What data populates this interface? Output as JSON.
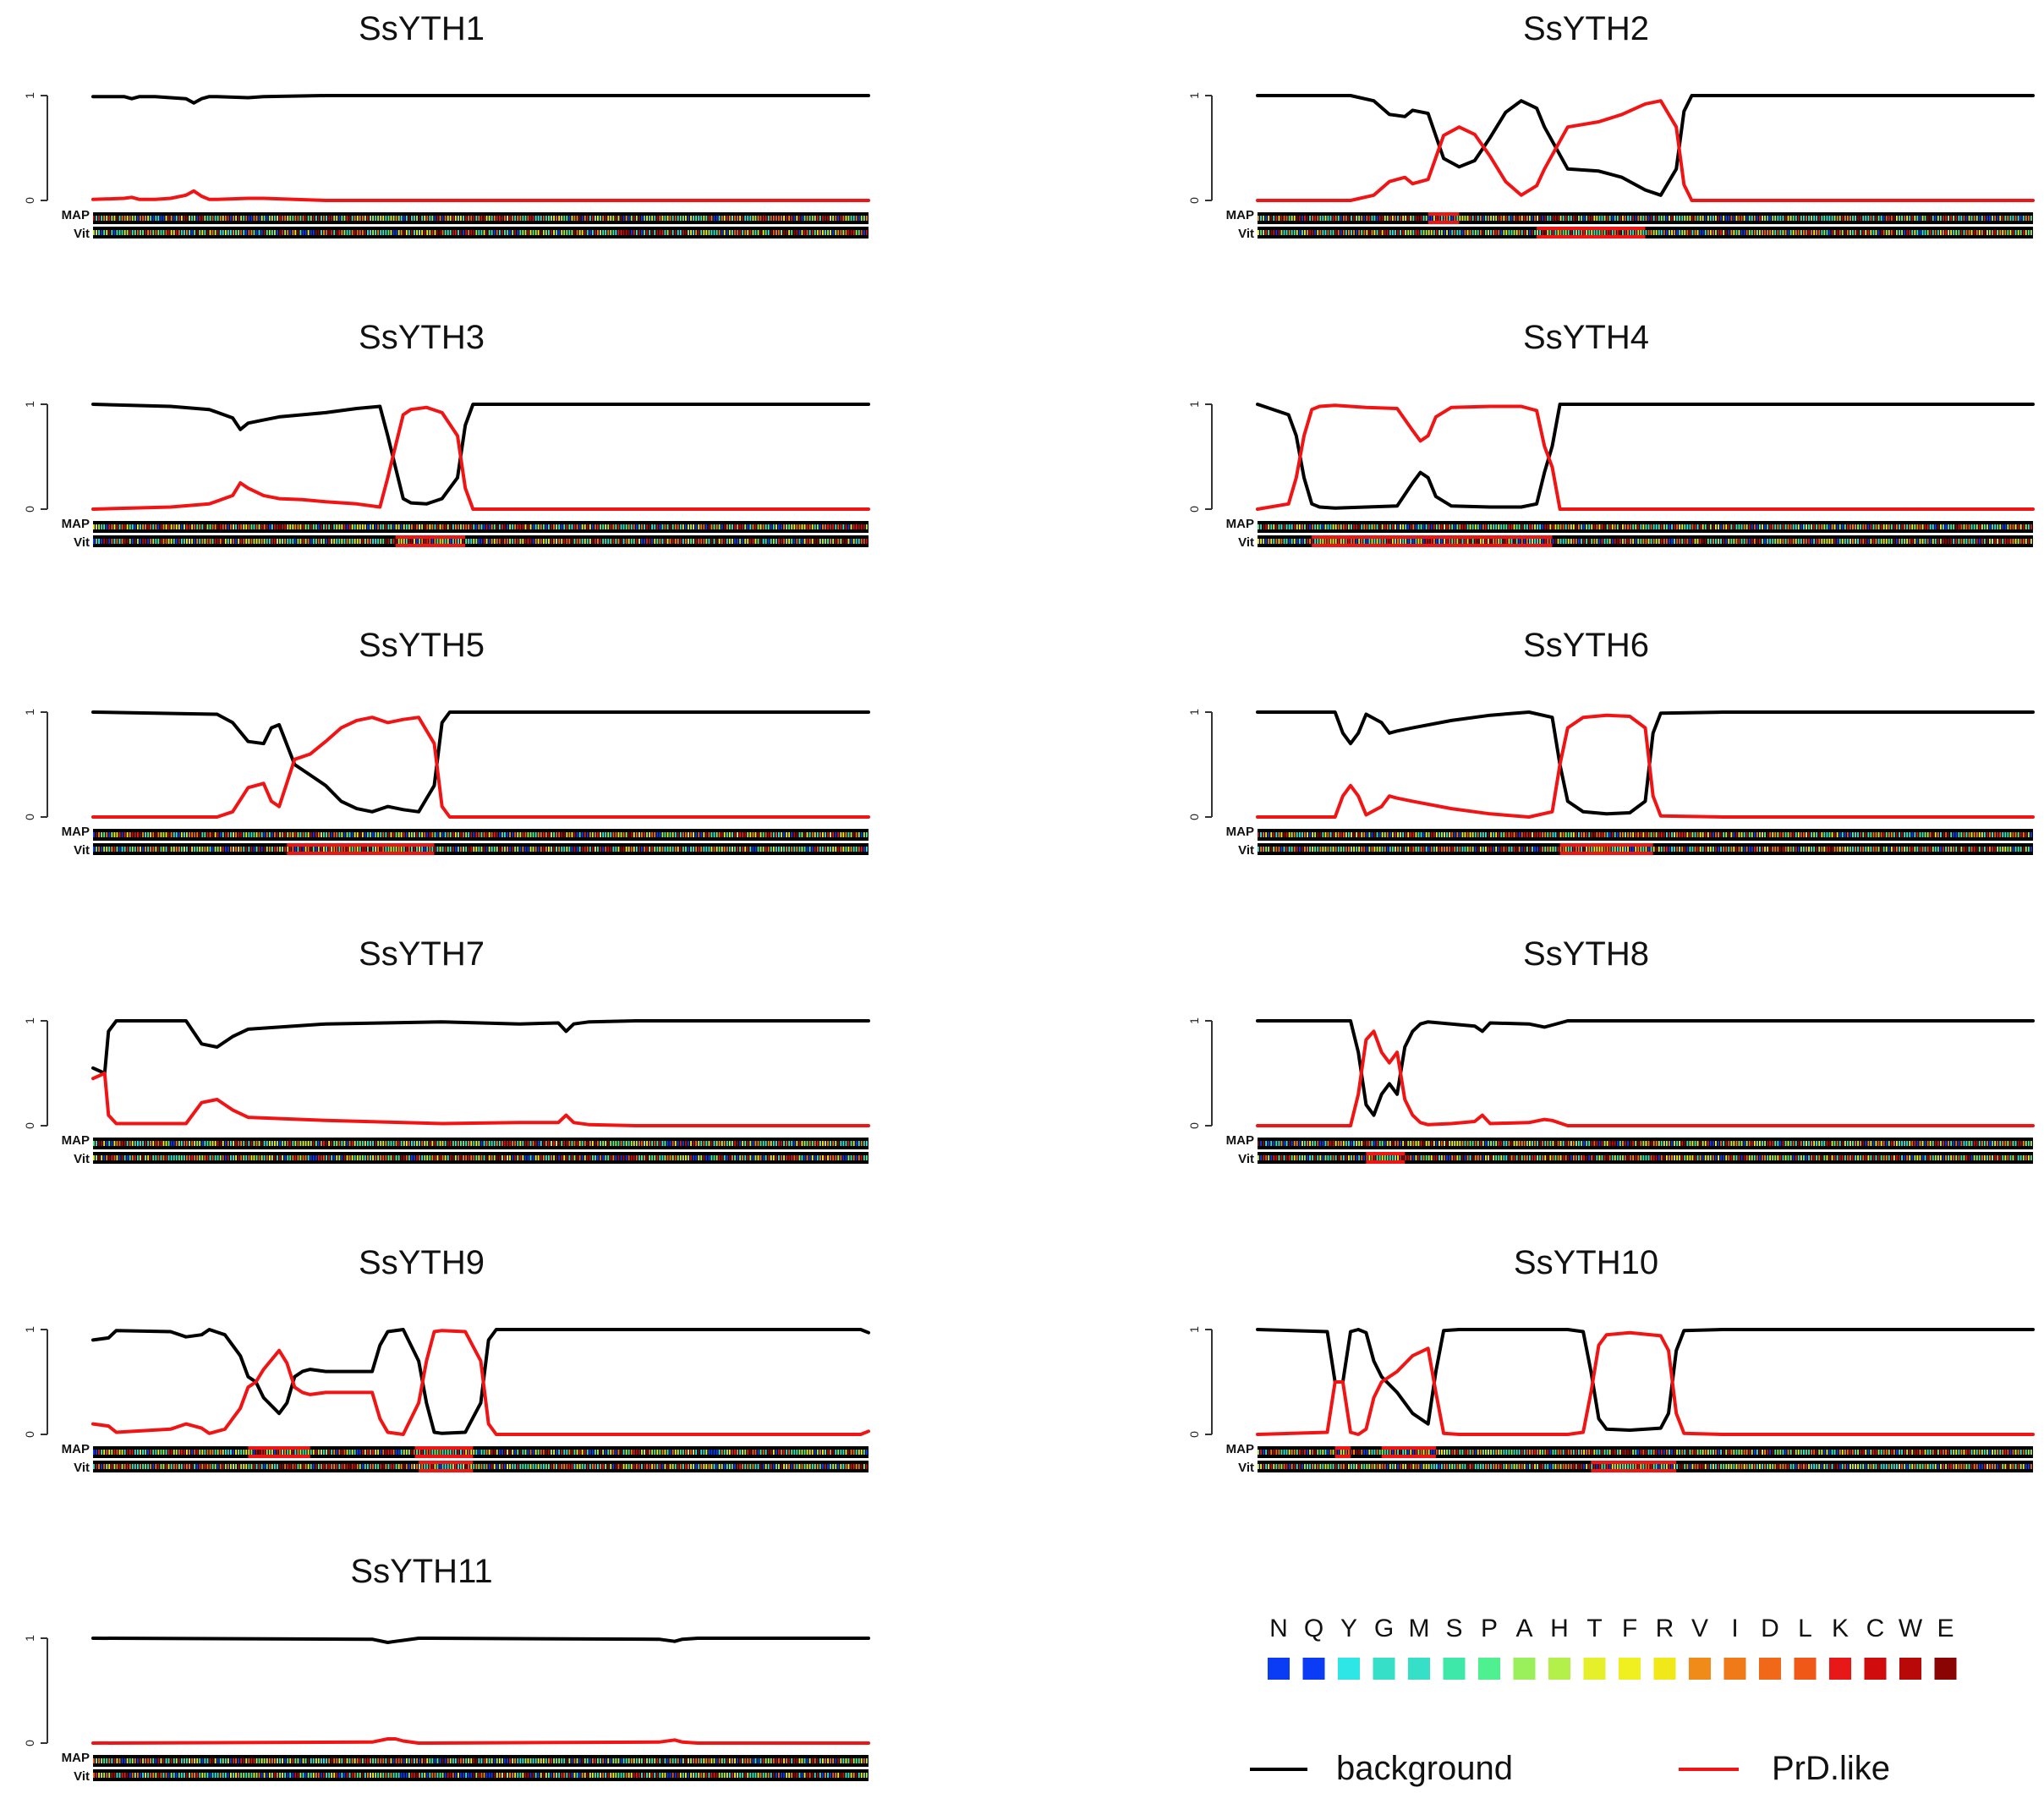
{
  "figure": {
    "legend": {
      "amino_acids": [
        "N",
        "Q",
        "Y",
        "G",
        "M",
        "S",
        "P",
        "A",
        "H",
        "T",
        "F",
        "R",
        "V",
        "I",
        "D",
        "L",
        "K",
        "C",
        "W",
        "E"
      ],
      "amino_colors": [
        "#0a3cf5",
        "#0a3cf5",
        "#2ee6e6",
        "#36e0c8",
        "#36e0c8",
        "#3ee8a8",
        "#4ef090",
        "#9af05a",
        "#b4f04a",
        "#e6f02a",
        "#f0f020",
        "#f0e818",
        "#f08a18",
        "#f07a18",
        "#f06818",
        "#f05818",
        "#e81818",
        "#d00c0c",
        "#b80808",
        "#8a0404"
      ],
      "lines": [
        {
          "label": "background",
          "color": "#000000"
        },
        {
          "label": "PrD.like",
          "color": "#f01414"
        }
      ]
    }
  },
  "chart_data": [
    {
      "type": "line",
      "title": "SsYTH1",
      "y_ticks": [
        "1",
        "0"
      ],
      "track_labels": [
        "MAP",
        "Vit"
      ],
      "ylim": [
        0,
        1
      ],
      "x": [
        0,
        0.04,
        0.05,
        0.06,
        0.08,
        0.1,
        0.12,
        0.13,
        0.14,
        0.15,
        0.16,
        0.2,
        0.22,
        0.3,
        1
      ],
      "series": [
        {
          "name": "background",
          "values": [
            0.99,
            0.99,
            0.97,
            0.99,
            0.99,
            0.98,
            0.97,
            0.93,
            0.97,
            0.99,
            0.99,
            0.98,
            0.99,
            1,
            1
          ]
        },
        {
          "name": "PrD.like",
          "values": [
            0.01,
            0.02,
            0.03,
            0.01,
            0.01,
            0.02,
            0.05,
            0.09,
            0.04,
            0.01,
            0.01,
            0.02,
            0.02,
            0,
            0
          ]
        }
      ],
      "map_segments": [],
      "vit_segments": []
    },
    {
      "type": "line",
      "title": "SsYTH2",
      "y_ticks": [
        "1",
        "0"
      ],
      "track_labels": [
        "MAP",
        "Vit"
      ],
      "ylim": [
        0,
        1
      ],
      "x": [
        0,
        0.12,
        0.15,
        0.17,
        0.19,
        0.2,
        0.22,
        0.24,
        0.26,
        0.28,
        0.3,
        0.32,
        0.34,
        0.36,
        0.37,
        0.4,
        0.44,
        0.47,
        0.5,
        0.52,
        0.54,
        0.55,
        0.56,
        0.58,
        0.62,
        0.75,
        1
      ],
      "series": [
        {
          "name": "background",
          "values": [
            1,
            1,
            0.95,
            0.82,
            0.8,
            0.86,
            0.83,
            0.4,
            0.32,
            0.38,
            0.6,
            0.84,
            0.95,
            0.88,
            0.7,
            0.3,
            0.28,
            0.22,
            0.1,
            0.05,
            0.3,
            0.85,
            1,
            1,
            1,
            1,
            1
          ]
        },
        {
          "name": "PrD.like",
          "values": [
            0,
            0,
            0.05,
            0.18,
            0.22,
            0.16,
            0.2,
            0.62,
            0.7,
            0.63,
            0.42,
            0.18,
            0.05,
            0.14,
            0.3,
            0.7,
            0.75,
            0.82,
            0.92,
            0.95,
            0.7,
            0.15,
            0,
            0,
            0,
            0,
            0
          ]
        }
      ],
      "map_segments": [
        [
          0.22,
          0.26
        ]
      ],
      "vit_segments": [
        [
          0.36,
          0.5
        ]
      ]
    },
    {
      "type": "line",
      "title": "SsYTH3",
      "y_ticks": [
        "1",
        "0"
      ],
      "track_labels": [
        "MAP",
        "Vit"
      ],
      "ylim": [
        0,
        1
      ],
      "x": [
        0,
        0.1,
        0.15,
        0.18,
        0.19,
        0.2,
        0.22,
        0.24,
        0.27,
        0.3,
        0.34,
        0.37,
        0.38,
        0.39,
        0.4,
        0.41,
        0.43,
        0.45,
        0.47,
        0.48,
        0.49,
        0.5,
        0.6,
        1
      ],
      "series": [
        {
          "name": "background",
          "values": [
            1,
            0.98,
            0.95,
            0.87,
            0.76,
            0.82,
            0.85,
            0.88,
            0.9,
            0.92,
            0.96,
            0.98,
            0.7,
            0.4,
            0.1,
            0.06,
            0.05,
            0.1,
            0.3,
            0.8,
            1,
            1,
            1,
            1
          ]
        },
        {
          "name": "PrD.like",
          "values": [
            0,
            0.02,
            0.05,
            0.13,
            0.25,
            0.2,
            0.13,
            0.1,
            0.09,
            0.07,
            0.05,
            0.02,
            0.3,
            0.6,
            0.9,
            0.95,
            0.97,
            0.92,
            0.7,
            0.2,
            0,
            0,
            0,
            0
          ]
        }
      ],
      "map_segments": [],
      "vit_segments": [
        [
          0.39,
          0.48
        ]
      ]
    },
    {
      "type": "line",
      "title": "SsYTH4",
      "y_ticks": [
        "1",
        "0"
      ],
      "track_labels": [
        "MAP",
        "Vit"
      ],
      "ylim": [
        0,
        1
      ],
      "x": [
        0,
        0.04,
        0.05,
        0.06,
        0.07,
        0.08,
        0.1,
        0.14,
        0.18,
        0.2,
        0.21,
        0.22,
        0.23,
        0.25,
        0.3,
        0.34,
        0.36,
        0.37,
        0.38,
        0.39,
        0.4,
        0.5,
        1
      ],
      "series": [
        {
          "name": "background",
          "values": [
            1,
            0.9,
            0.7,
            0.3,
            0.05,
            0.02,
            0.01,
            0.02,
            0.03,
            0.25,
            0.35,
            0.3,
            0.12,
            0.03,
            0.02,
            0.02,
            0.05,
            0.35,
            0.6,
            1,
            1,
            1,
            1
          ]
        },
        {
          "name": "PrD.like",
          "values": [
            0,
            0.05,
            0.3,
            0.7,
            0.95,
            0.98,
            0.99,
            0.97,
            0.96,
            0.75,
            0.65,
            0.7,
            0.88,
            0.97,
            0.98,
            0.98,
            0.94,
            0.6,
            0.4,
            0,
            0,
            0,
            0
          ]
        }
      ],
      "map_segments": [],
      "vit_segments": [
        [
          0.07,
          0.38
        ]
      ]
    },
    {
      "type": "line",
      "title": "SsYTH5",
      "y_ticks": [
        "1",
        "0"
      ],
      "track_labels": [
        "MAP",
        "Vit"
      ],
      "ylim": [
        0,
        1
      ],
      "x": [
        0,
        0.16,
        0.18,
        0.2,
        0.22,
        0.23,
        0.24,
        0.26,
        0.28,
        0.3,
        0.32,
        0.34,
        0.36,
        0.38,
        0.4,
        0.42,
        0.44,
        0.45,
        0.46,
        0.5,
        1
      ],
      "series": [
        {
          "name": "background",
          "values": [
            1,
            0.98,
            0.9,
            0.72,
            0.7,
            0.85,
            0.88,
            0.5,
            0.4,
            0.3,
            0.15,
            0.08,
            0.05,
            0.1,
            0.07,
            0.05,
            0.3,
            0.9,
            1,
            1,
            1
          ]
        },
        {
          "name": "PrD.like",
          "values": [
            0,
            0,
            0.05,
            0.28,
            0.32,
            0.15,
            0.1,
            0.55,
            0.6,
            0.72,
            0.85,
            0.92,
            0.95,
            0.9,
            0.93,
            0.95,
            0.7,
            0.1,
            0,
            0,
            0
          ]
        }
      ],
      "map_segments": [],
      "vit_segments": [
        [
          0.25,
          0.44
        ]
      ]
    },
    {
      "type": "line",
      "title": "SsYTH6",
      "y_ticks": [
        "1",
        "0"
      ],
      "track_labels": [
        "MAP",
        "Vit"
      ],
      "ylim": [
        0,
        1
      ],
      "x": [
        0,
        0.1,
        0.11,
        0.12,
        0.13,
        0.14,
        0.16,
        0.17,
        0.18,
        0.2,
        0.25,
        0.3,
        0.35,
        0.38,
        0.39,
        0.4,
        0.42,
        0.45,
        0.48,
        0.5,
        0.51,
        0.52,
        0.6,
        1
      ],
      "series": [
        {
          "name": "background",
          "values": [
            1,
            1,
            0.8,
            0.7,
            0.8,
            0.98,
            0.9,
            0.8,
            0.82,
            0.85,
            0.92,
            0.97,
            1,
            0.95,
            0.5,
            0.15,
            0.05,
            0.03,
            0.04,
            0.15,
            0.8,
            0.99,
            1,
            1
          ]
        },
        {
          "name": "PrD.like",
          "values": [
            0,
            0,
            0.2,
            0.3,
            0.2,
            0.02,
            0.1,
            0.2,
            0.18,
            0.15,
            0.08,
            0.03,
            0,
            0.05,
            0.5,
            0.85,
            0.95,
            0.97,
            0.96,
            0.85,
            0.2,
            0.01,
            0,
            0
          ]
        }
      ],
      "map_segments": [],
      "vit_segments": [
        [
          0.39,
          0.51
        ]
      ]
    },
    {
      "type": "line",
      "title": "SsYTH7",
      "y_ticks": [
        "1",
        "0"
      ],
      "track_labels": [
        "MAP",
        "Vit"
      ],
      "ylim": [
        0,
        1
      ],
      "x": [
        0,
        0.015,
        0.02,
        0.03,
        0.12,
        0.14,
        0.16,
        0.18,
        0.2,
        0.3,
        0.45,
        0.55,
        0.6,
        0.61,
        0.62,
        0.64,
        0.7,
        1
      ],
      "series": [
        {
          "name": "background",
          "values": [
            0.55,
            0.5,
            0.9,
            1,
            1,
            0.78,
            0.75,
            0.85,
            0.92,
            0.97,
            0.99,
            0.97,
            0.98,
            0.9,
            0.97,
            0.99,
            1,
            1
          ]
        },
        {
          "name": "PrD.like",
          "values": [
            0.45,
            0.5,
            0.1,
            0.02,
            0.02,
            0.22,
            0.25,
            0.15,
            0.08,
            0.05,
            0.02,
            0.03,
            0.03,
            0.1,
            0.03,
            0.01,
            0,
            0
          ]
        }
      ],
      "map_segments": [],
      "vit_segments": []
    },
    {
      "type": "line",
      "title": "SsYTH8",
      "y_ticks": [
        "1",
        "0"
      ],
      "track_labels": [
        "MAP",
        "Vit"
      ],
      "ylim": [
        0,
        1
      ],
      "x": [
        0,
        0.12,
        0.13,
        0.14,
        0.15,
        0.16,
        0.17,
        0.18,
        0.19,
        0.2,
        0.21,
        0.22,
        0.25,
        0.28,
        0.29,
        0.3,
        0.35,
        0.37,
        0.38,
        0.4,
        0.5,
        1
      ],
      "series": [
        {
          "name": "background",
          "values": [
            1,
            1,
            0.7,
            0.2,
            0.1,
            0.3,
            0.4,
            0.3,
            0.75,
            0.9,
            0.97,
            0.99,
            0.97,
            0.95,
            0.9,
            0.98,
            0.97,
            0.94,
            0.96,
            1,
            1,
            1
          ]
        },
        {
          "name": "PrD.like",
          "values": [
            0,
            0,
            0.3,
            0.82,
            0.9,
            0.7,
            0.6,
            0.7,
            0.25,
            0.1,
            0.03,
            0.01,
            0.02,
            0.04,
            0.1,
            0.02,
            0.03,
            0.06,
            0.05,
            0,
            0,
            0
          ]
        }
      ],
      "map_segments": [],
      "vit_segments": [
        [
          0.14,
          0.19
        ]
      ]
    },
    {
      "type": "line",
      "title": "SsYTH9",
      "y_ticks": [
        "1",
        "0"
      ],
      "track_labels": [
        "MAP",
        "Vit"
      ],
      "ylim": [
        0,
        1
      ],
      "x": [
        0,
        0.02,
        0.03,
        0.1,
        0.12,
        0.14,
        0.15,
        0.17,
        0.19,
        0.2,
        0.21,
        0.22,
        0.24,
        0.25,
        0.26,
        0.27,
        0.28,
        0.3,
        0.36,
        0.37,
        0.38,
        0.4,
        0.42,
        0.43,
        0.44,
        0.45,
        0.48,
        0.5,
        0.51,
        0.52,
        0.6,
        0.99,
        1
      ],
      "series": [
        {
          "name": "background",
          "values": [
            0.9,
            0.92,
            0.99,
            0.98,
            0.93,
            0.95,
            1,
            0.95,
            0.75,
            0.55,
            0.5,
            0.35,
            0.2,
            0.3,
            0.55,
            0.6,
            0.62,
            0.6,
            0.6,
            0.85,
            0.98,
            1,
            0.7,
            0.3,
            0.02,
            0.01,
            0.02,
            0.3,
            0.9,
            1,
            1,
            1,
            0.97
          ]
        },
        {
          "name": "PrD.like",
          "values": [
            0.1,
            0.08,
            0.02,
            0.05,
            0.1,
            0.06,
            0.01,
            0.05,
            0.25,
            0.45,
            0.5,
            0.62,
            0.8,
            0.68,
            0.45,
            0.4,
            0.38,
            0.4,
            0.4,
            0.15,
            0.02,
            0,
            0.3,
            0.7,
            0.98,
            0.99,
            0.98,
            0.7,
            0.1,
            0,
            0,
            0,
            0.03
          ]
        }
      ],
      "map_segments": [
        [
          0.2,
          0.28
        ],
        [
          0.415,
          0.49
        ]
      ],
      "vit_segments": [
        [
          0.42,
          0.49
        ]
      ]
    },
    {
      "type": "line",
      "title": "SsYTH10",
      "y_ticks": [
        "1",
        "0"
      ],
      "track_labels": [
        "MAP",
        "Vit"
      ],
      "ylim": [
        0,
        1
      ],
      "x": [
        0,
        0.09,
        0.1,
        0.11,
        0.12,
        0.13,
        0.14,
        0.15,
        0.16,
        0.18,
        0.2,
        0.22,
        0.23,
        0.24,
        0.26,
        0.3,
        0.4,
        0.42,
        0.43,
        0.44,
        0.45,
        0.48,
        0.52,
        0.53,
        0.54,
        0.55,
        0.6,
        1
      ],
      "series": [
        {
          "name": "background",
          "values": [
            1,
            0.98,
            0.5,
            0.5,
            0.98,
            1,
            0.97,
            0.7,
            0.55,
            0.4,
            0.2,
            0.1,
            0.6,
            0.99,
            1,
            1,
            1,
            0.98,
            0.6,
            0.15,
            0.05,
            0.04,
            0.06,
            0.2,
            0.8,
            0.99,
            1,
            1
          ]
        },
        {
          "name": "PrD.like",
          "values": [
            0,
            0.02,
            0.5,
            0.5,
            0.02,
            0,
            0.05,
            0.35,
            0.5,
            0.6,
            0.75,
            0.82,
            0.4,
            0.01,
            0,
            0,
            0,
            0.02,
            0.4,
            0.85,
            0.95,
            0.97,
            0.94,
            0.8,
            0.2,
            0.01,
            0,
            0
          ]
        }
      ],
      "map_segments": [
        [
          0.1,
          0.12
        ],
        [
          0.16,
          0.23
        ]
      ],
      "vit_segments": [
        [
          0.43,
          0.54
        ]
      ]
    },
    {
      "type": "line",
      "title": "SsYTH11",
      "y_ticks": [
        "1",
        "0"
      ],
      "track_labels": [
        "MAP",
        "Vit"
      ],
      "ylim": [
        0,
        1
      ],
      "x": [
        0,
        0.36,
        0.38,
        0.39,
        0.4,
        0.42,
        0.73,
        0.75,
        0.76,
        0.78,
        1
      ],
      "series": [
        {
          "name": "background",
          "values": [
            1,
            0.99,
            0.96,
            0.97,
            0.98,
            1,
            0.99,
            0.97,
            0.99,
            1,
            1
          ]
        },
        {
          "name": "PrD.like",
          "values": [
            0,
            0.01,
            0.04,
            0.04,
            0.02,
            0,
            0.01,
            0.03,
            0.01,
            0,
            0
          ]
        }
      ],
      "map_segments": [],
      "vit_segments": []
    }
  ]
}
